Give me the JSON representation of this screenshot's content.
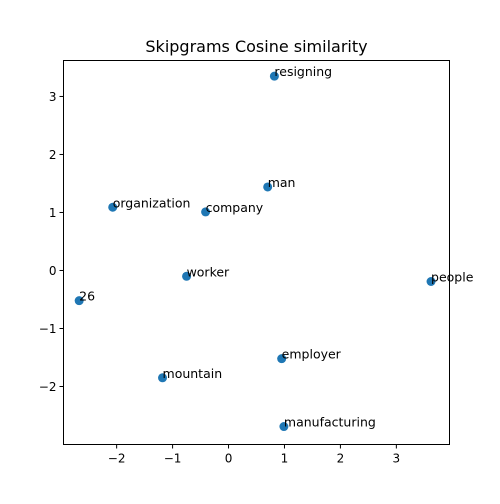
{
  "chart_data": {
    "type": "scatter",
    "title": "Skipgrams Cosine similarity",
    "xlabel": "",
    "ylabel": "",
    "xlim": [
      -2.95,
      3.95
    ],
    "ylim": [
      -3.0,
      3.62
    ],
    "xticks": [
      -2,
      -1,
      0,
      1,
      2,
      3
    ],
    "yticks": [
      -2,
      -1,
      0,
      1,
      2,
      3
    ],
    "grid": false,
    "marker_color": "#1f77b4",
    "points": [
      {
        "label": "resigning",
        "x": 0.82,
        "y": 3.35
      },
      {
        "label": "man",
        "x": 0.7,
        "y": 1.44
      },
      {
        "label": "organization",
        "x": -2.07,
        "y": 1.09
      },
      {
        "label": "company",
        "x": -0.41,
        "y": 1.01
      },
      {
        "label": "worker",
        "x": -0.75,
        "y": -0.1
      },
      {
        "label": "people",
        "x": 3.62,
        "y": -0.19
      },
      {
        "label": "26",
        "x": -2.67,
        "y": -0.52
      },
      {
        "label": "employer",
        "x": 0.95,
        "y": -1.52
      },
      {
        "label": "mountain",
        "x": -1.18,
        "y": -1.85
      },
      {
        "label": "manufacturing",
        "x": 0.99,
        "y": -2.69
      }
    ]
  }
}
